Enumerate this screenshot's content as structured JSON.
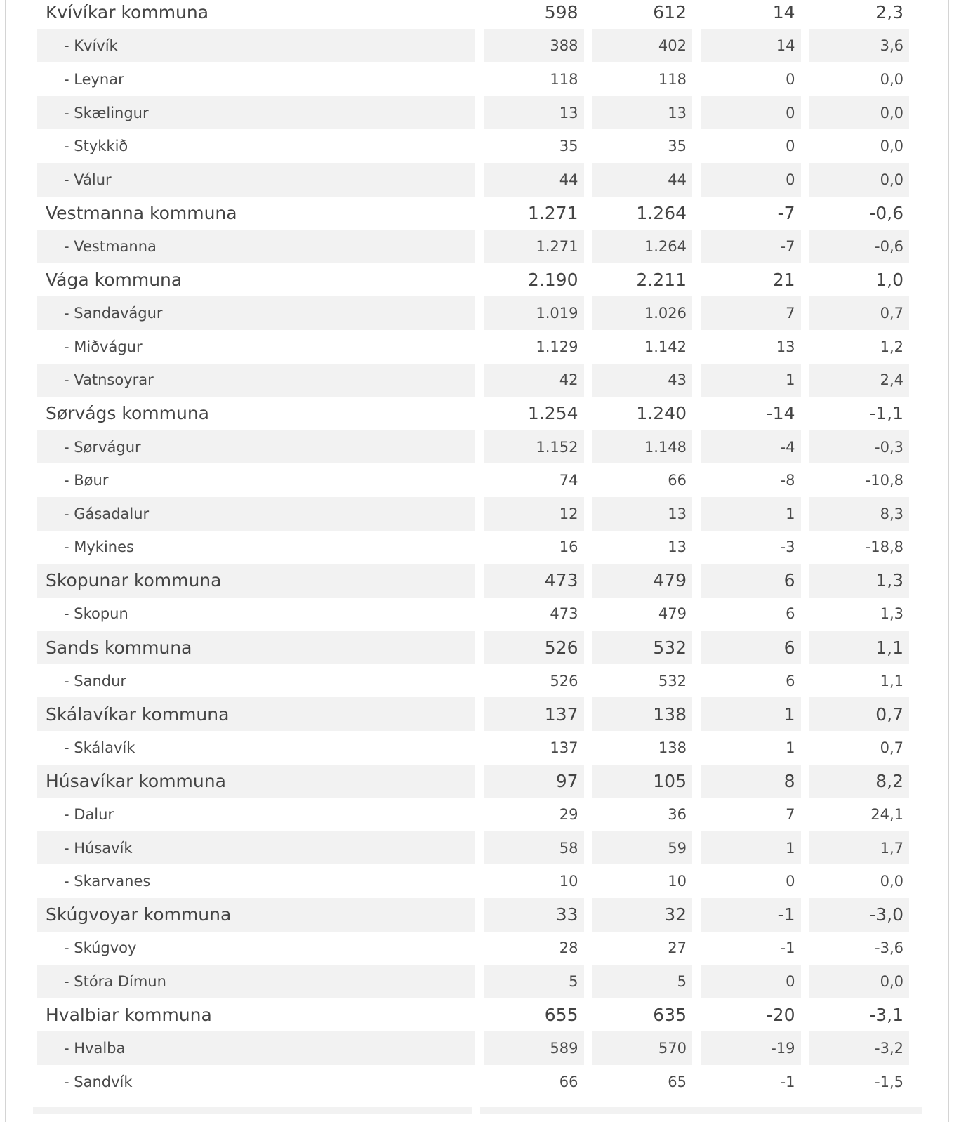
{
  "table": {
    "rows": [
      {
        "type": "commune",
        "shaded": false,
        "name": "Kvívíkar kommuna",
        "c1": "598",
        "c2": "612",
        "c3": "14",
        "c4": "2,3"
      },
      {
        "type": "village",
        "shaded": true,
        "name": "- Kvívík",
        "c1": "388",
        "c2": "402",
        "c3": "14",
        "c4": "3,6"
      },
      {
        "type": "village",
        "shaded": false,
        "name": "- Leynar",
        "c1": "118",
        "c2": "118",
        "c3": "0",
        "c4": "0,0"
      },
      {
        "type": "village",
        "shaded": true,
        "name": "- Skælingur",
        "c1": "13",
        "c2": "13",
        "c3": "0",
        "c4": "0,0"
      },
      {
        "type": "village",
        "shaded": false,
        "name": "- Stykkið",
        "c1": "35",
        "c2": "35",
        "c3": "0",
        "c4": "0,0"
      },
      {
        "type": "village",
        "shaded": true,
        "name": "- Válur",
        "c1": "44",
        "c2": "44",
        "c3": "0",
        "c4": "0,0"
      },
      {
        "type": "commune",
        "shaded": false,
        "name": "Vestmanna kommuna",
        "c1": "1.271",
        "c2": "1.264",
        "c3": "-7",
        "c4": "-0,6"
      },
      {
        "type": "village",
        "shaded": true,
        "name": "- Vestmanna",
        "c1": "1.271",
        "c2": "1.264",
        "c3": "-7",
        "c4": "-0,6"
      },
      {
        "type": "commune",
        "shaded": false,
        "name": "Vága kommuna",
        "c1": "2.190",
        "c2": "2.211",
        "c3": "21",
        "c4": "1,0"
      },
      {
        "type": "village",
        "shaded": true,
        "name": "- Sandavágur",
        "c1": "1.019",
        "c2": "1.026",
        "c3": "7",
        "c4": "0,7"
      },
      {
        "type": "village",
        "shaded": false,
        "name": "- Miðvágur",
        "c1": "1.129",
        "c2": "1.142",
        "c3": "13",
        "c4": "1,2"
      },
      {
        "type": "village",
        "shaded": true,
        "name": "- Vatnsoyrar",
        "c1": "42",
        "c2": "43",
        "c3": "1",
        "c4": "2,4"
      },
      {
        "type": "commune",
        "shaded": false,
        "name": "Sørvágs kommuna",
        "c1": "1.254",
        "c2": "1.240",
        "c3": "-14",
        "c4": "-1,1"
      },
      {
        "type": "village",
        "shaded": true,
        "name": "- Sørvágur",
        "c1": "1.152",
        "c2": "1.148",
        "c3": "-4",
        "c4": "-0,3"
      },
      {
        "type": "village",
        "shaded": false,
        "name": "- Bøur",
        "c1": "74",
        "c2": "66",
        "c3": "-8",
        "c4": "-10,8"
      },
      {
        "type": "village",
        "shaded": true,
        "name": "- Gásadalur",
        "c1": "12",
        "c2": "13",
        "c3": "1",
        "c4": "8,3"
      },
      {
        "type": "village",
        "shaded": false,
        "name": "- Mykines",
        "c1": "16",
        "c2": "13",
        "c3": "-3",
        "c4": "-18,8"
      },
      {
        "type": "commune",
        "shaded": true,
        "name": "Skopunar kommuna",
        "c1": "473",
        "c2": "479",
        "c3": "6",
        "c4": "1,3"
      },
      {
        "type": "village",
        "shaded": false,
        "name": "- Skopun",
        "c1": "473",
        "c2": "479",
        "c3": "6",
        "c4": "1,3"
      },
      {
        "type": "commune",
        "shaded": true,
        "name": "Sands kommuna",
        "c1": "526",
        "c2": "532",
        "c3": "6",
        "c4": "1,1"
      },
      {
        "type": "village",
        "shaded": false,
        "name": "- Sandur",
        "c1": "526",
        "c2": "532",
        "c3": "6",
        "c4": "1,1"
      },
      {
        "type": "commune",
        "shaded": true,
        "name": "Skálavíkar kommuna",
        "c1": "137",
        "c2": "138",
        "c3": "1",
        "c4": "0,7"
      },
      {
        "type": "village",
        "shaded": false,
        "name": "- Skálavík",
        "c1": "137",
        "c2": "138",
        "c3": "1",
        "c4": "0,7"
      },
      {
        "type": "commune",
        "shaded": true,
        "name": "Húsavíkar kommuna",
        "c1": "97",
        "c2": "105",
        "c3": "8",
        "c4": "8,2"
      },
      {
        "type": "village",
        "shaded": false,
        "name": "- Dalur",
        "c1": "29",
        "c2": "36",
        "c3": "7",
        "c4": "24,1"
      },
      {
        "type": "village",
        "shaded": true,
        "name": "- Húsavík",
        "c1": "58",
        "c2": "59",
        "c3": "1",
        "c4": "1,7"
      },
      {
        "type": "village",
        "shaded": false,
        "name": "- Skarvanes",
        "c1": "10",
        "c2": "10",
        "c3": "0",
        "c4": "0,0"
      },
      {
        "type": "commune",
        "shaded": true,
        "name": "Skúgvoyar kommuna",
        "c1": "33",
        "c2": "32",
        "c3": "-1",
        "c4": "-3,0"
      },
      {
        "type": "village",
        "shaded": false,
        "name": "- Skúgvoy",
        "c1": "28",
        "c2": "27",
        "c3": "-1",
        "c4": "-3,6"
      },
      {
        "type": "village",
        "shaded": true,
        "name": "- Stóra Dímun",
        "c1": "5",
        "c2": "5",
        "c3": "0",
        "c4": "0,0"
      },
      {
        "type": "commune",
        "shaded": false,
        "name": "Hvalbiar kommuna",
        "c1": "655",
        "c2": "635",
        "c3": "-20",
        "c4": "-3,1"
      },
      {
        "type": "village",
        "shaded": true,
        "name": "- Hvalba",
        "c1": "589",
        "c2": "570",
        "c3": "-19",
        "c4": "-3,2"
      },
      {
        "type": "village",
        "shaded": false,
        "name": "- Sandvík",
        "c1": "66",
        "c2": "65",
        "c3": "-1",
        "c4": "-1,5"
      }
    ]
  }
}
